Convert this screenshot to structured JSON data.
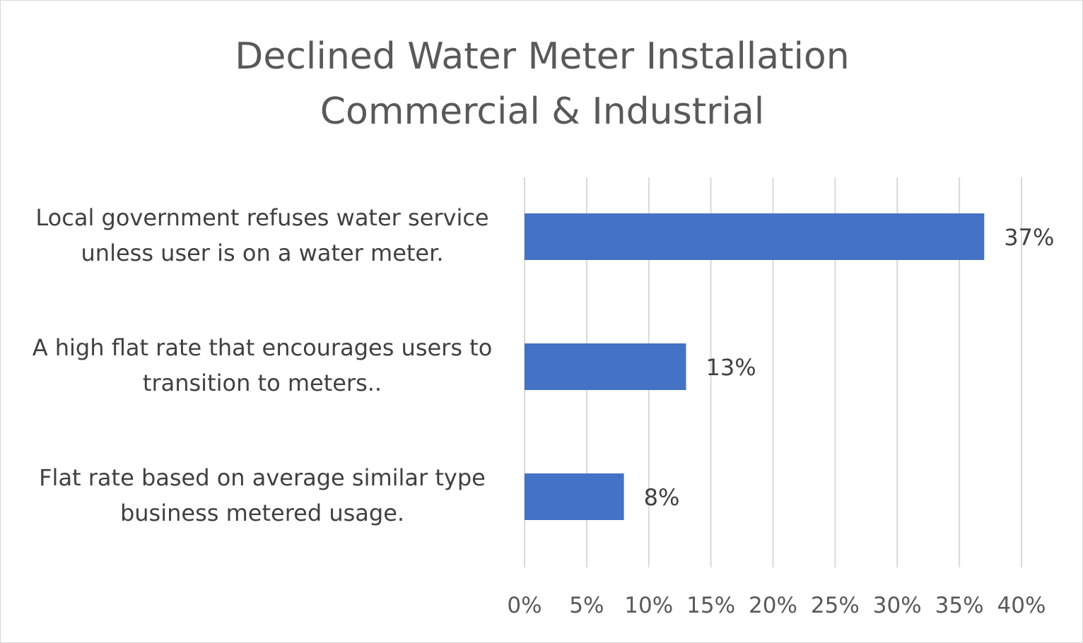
{
  "chart_data": {
    "type": "bar",
    "orientation": "horizontal",
    "title": [
      "Declined Water Meter Installation",
      "Commercial & Industrial"
    ],
    "categories": [
      [
        "Local government refuses water service",
        "unless user is on a water meter."
      ],
      [
        "A high flat rate that encourages users to",
        "transition to meters.."
      ],
      [
        "Flat rate based on average similar type",
        "business metered usage."
      ]
    ],
    "values": [
      37,
      13,
      8
    ],
    "data_labels": [
      "37%",
      "13%",
      "8%"
    ],
    "xlim": [
      0,
      40
    ],
    "xticks": [
      0,
      5,
      10,
      15,
      20,
      25,
      30,
      35,
      40
    ],
    "xtick_labels": [
      "0%",
      "5%",
      "10%",
      "15%",
      "20%",
      "25%",
      "30%",
      "35%",
      "40%"
    ],
    "grid": true,
    "legend": "none",
    "bar_color": "#4472c4",
    "xlabel": "",
    "ylabel": ""
  }
}
